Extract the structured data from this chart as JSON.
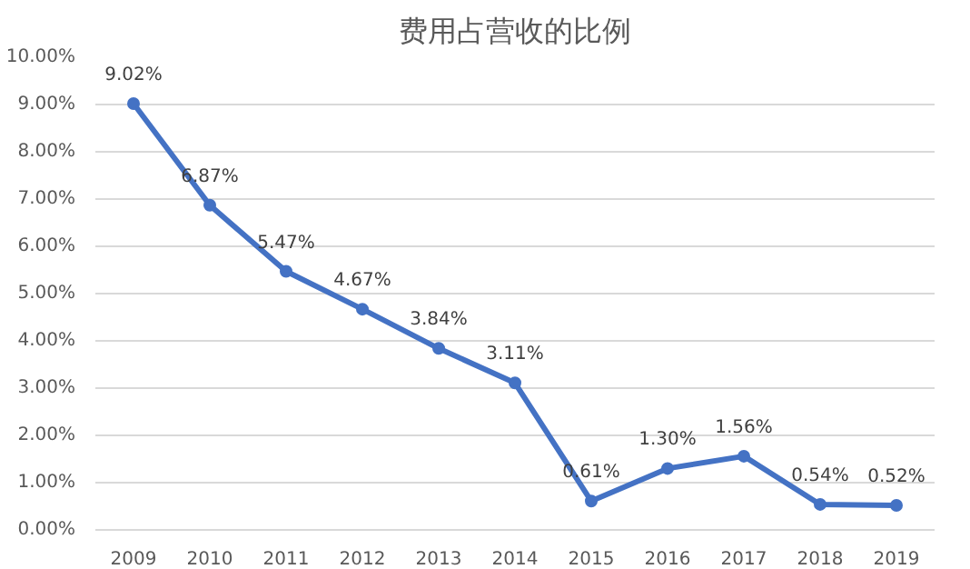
{
  "chart_data": {
    "type": "line",
    "title": "费用占营收的比例",
    "categories": [
      "2009",
      "2010",
      "2011",
      "2012",
      "2013",
      "2014",
      "2015",
      "2016",
      "2017",
      "2018",
      "2019"
    ],
    "series": [
      {
        "color": "#4472c4",
        "values": [
          9.02,
          6.87,
          5.47,
          4.67,
          3.84,
          3.11,
          0.61,
          1.3,
          1.56,
          0.54,
          0.52
        ],
        "value_labels": [
          "9.02%",
          "6.87%",
          "5.47%",
          "4.67%",
          "3.84%",
          "3.11%",
          "0.61%",
          "1.30%",
          "1.56%",
          "0.54%",
          "0.52%"
        ]
      }
    ],
    "ylim": [
      0,
      10
    ],
    "yticks": [
      {
        "value": 0,
        "label": "0.00%"
      },
      {
        "value": 1,
        "label": "1.00%"
      },
      {
        "value": 2,
        "label": "2.00%"
      },
      {
        "value": 3,
        "label": "3.00%"
      },
      {
        "value": 4,
        "label": "4.00%"
      },
      {
        "value": 5,
        "label": "5.00%"
      },
      {
        "value": 6,
        "label": "6.00%"
      },
      {
        "value": 7,
        "label": "7.00%"
      },
      {
        "value": 8,
        "label": "8.00%"
      },
      {
        "value": 9,
        "label": "9.00%"
      },
      {
        "value": 10,
        "label": "10.00%"
      }
    ],
    "grid": "y",
    "marker": "circle",
    "line_style": "solid"
  }
}
